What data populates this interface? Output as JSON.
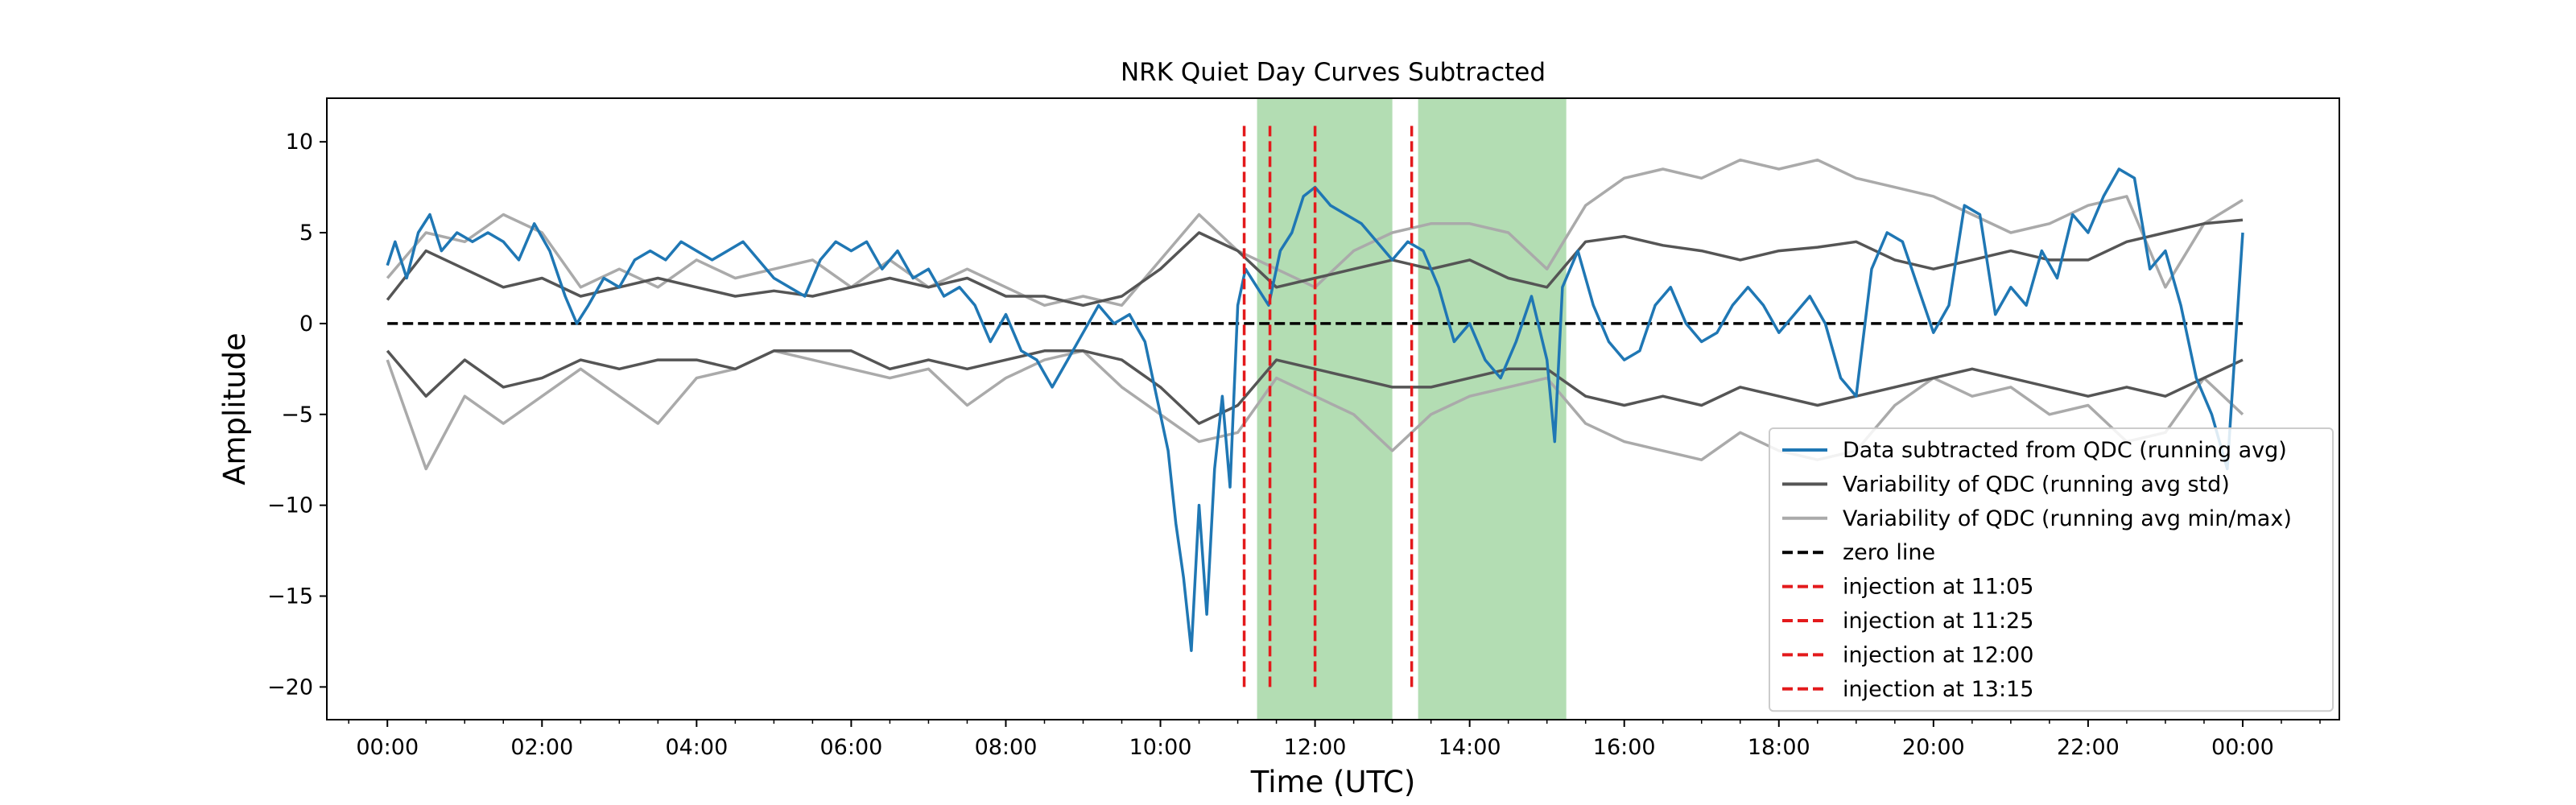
{
  "chart_data": {
    "type": "line",
    "title": "NRK Quiet Day Curves Subtracted",
    "xlabel": "Time (UTC)",
    "ylabel": "Amplitude",
    "xlim": [
      "2024-01-01T23:13",
      "2024-01-03T01:15"
    ],
    "ylim": [
      -21.8,
      12.4
    ],
    "x_ticks": [
      "00:00",
      "02:00",
      "04:00",
      "06:00",
      "08:00",
      "10:00",
      "12:00",
      "14:00",
      "16:00",
      "18:00",
      "20:00",
      "22:00",
      "00:00"
    ],
    "x_tick_hours": [
      0,
      2,
      4,
      6,
      8,
      10,
      12,
      14,
      16,
      18,
      20,
      22,
      24
    ],
    "y_ticks": [
      10,
      5,
      0,
      -5,
      -10,
      -15,
      -20
    ],
    "y_tick_labels": [
      "10",
      "5",
      "0",
      "−5",
      "−10",
      "−15",
      "−20"
    ],
    "grid": false,
    "legend_position": "lower right",
    "shaded_regions": [
      {
        "start": "11:15",
        "end": "13:00",
        "color": "#2ca02c"
      },
      {
        "start": "13:20",
        "end": "15:15",
        "color": "#2ca02c"
      }
    ],
    "legend": [
      {
        "label": "Data subtracted from QDC (running avg)",
        "color": "#1f77b4",
        "dash": "solid"
      },
      {
        "label": "Variability of QDC (running avg std)",
        "color": "#555555",
        "dash": "solid"
      },
      {
        "label": "Variability of QDC (running avg min/max)",
        "color": "#aaaaaa",
        "dash": "solid"
      },
      {
        "label": "zero line",
        "color": "#000000",
        "dash": "dashed"
      },
      {
        "label": "injection at 11:05",
        "color": "#e31a1c",
        "dash": "dashed"
      },
      {
        "label": "injection at 11:25",
        "color": "#e31a1c",
        "dash": "dashed"
      },
      {
        "label": "injection at 12:00",
        "color": "#e31a1c",
        "dash": "dashed"
      },
      {
        "label": "injection at 13:15",
        "color": "#e31a1c",
        "dash": "dashed"
      }
    ],
    "injections": [
      {
        "time": "11:05",
        "ymin": -20,
        "ymax": 11
      },
      {
        "time": "11:25",
        "ymin": -20,
        "ymax": 11
      },
      {
        "time": "12:00",
        "ymin": -20,
        "ymax": 11
      },
      {
        "time": "13:15",
        "ymin": -20,
        "ymax": 11
      }
    ],
    "series": [
      {
        "name": "Data subtracted from QDC (running avg)",
        "color": "#1f77b4",
        "x": [
          0,
          0.1,
          0.25,
          0.4,
          0.55,
          0.7,
          0.9,
          1.1,
          1.3,
          1.5,
          1.7,
          1.9,
          2.1,
          2.3,
          2.45,
          2.6,
          2.8,
          3.0,
          3.2,
          3.4,
          3.6,
          3.8,
          4.0,
          4.2,
          4.4,
          4.6,
          4.8,
          5.0,
          5.2,
          5.4,
          5.6,
          5.8,
          6.0,
          6.2,
          6.4,
          6.6,
          6.8,
          7.0,
          7.2,
          7.4,
          7.6,
          7.8,
          8.0,
          8.2,
          8.4,
          8.6,
          8.8,
          9.0,
          9.2,
          9.4,
          9.6,
          9.8,
          9.95,
          10.1,
          10.2,
          10.3,
          10.4,
          10.5,
          10.6,
          10.7,
          10.8,
          10.9,
          11.0,
          11.1,
          11.25,
          11.4,
          11.55,
          11.7,
          11.85,
          12.0,
          12.2,
          12.4,
          12.6,
          12.8,
          13.0,
          13.2,
          13.4,
          13.6,
          13.8,
          14.0,
          14.2,
          14.4,
          14.6,
          14.8,
          15.0,
          15.1,
          15.2,
          15.4,
          15.6,
          15.8,
          16.0,
          16.2,
          16.4,
          16.6,
          16.8,
          17.0,
          17.2,
          17.4,
          17.6,
          17.8,
          18.0,
          18.2,
          18.4,
          18.6,
          18.8,
          19.0,
          19.2,
          19.4,
          19.6,
          19.8,
          20.0,
          20.2,
          20.4,
          20.6,
          20.8,
          21.0,
          21.2,
          21.4,
          21.6,
          21.8,
          22.0,
          22.2,
          22.4,
          22.6,
          22.8,
          23.0,
          23.2,
          23.4,
          23.6,
          23.8,
          24.0
        ],
        "y": [
          3.2,
          4.5,
          2.5,
          5.0,
          6.0,
          4.0,
          5.0,
          4.5,
          5.0,
          4.5,
          3.5,
          5.5,
          4.0,
          1.5,
          0.0,
          1.0,
          2.5,
          2.0,
          3.5,
          4.0,
          3.5,
          4.5,
          4.0,
          3.5,
          4.0,
          4.5,
          3.5,
          2.5,
          2.0,
          1.5,
          3.5,
          4.5,
          4.0,
          4.5,
          3.0,
          4.0,
          2.5,
          3.0,
          1.5,
          2.0,
          1.0,
          -1.0,
          0.5,
          -1.5,
          -2.0,
          -3.5,
          -2.0,
          -0.5,
          1.0,
          0.0,
          0.5,
          -1.0,
          -4.0,
          -7.0,
          -11.0,
          -14.0,
          -18.0,
          -10.0,
          -16.0,
          -8.0,
          -4.0,
          -9.0,
          1.0,
          3.0,
          2.0,
          1.0,
          4.0,
          5.0,
          7.0,
          7.5,
          6.5,
          6.0,
          5.5,
          4.5,
          3.5,
          4.5,
          4.0,
          2.0,
          -1.0,
          0.0,
          -2.0,
          -3.0,
          -1.0,
          1.5,
          -2.0,
          -6.5,
          2.0,
          4.0,
          1.0,
          -1.0,
          -2.0,
          -1.5,
          1.0,
          2.0,
          0.0,
          -1.0,
          -0.5,
          1.0,
          2.0,
          1.0,
          -0.5,
          0.5,
          1.5,
          0.0,
          -3.0,
          -4.0,
          3.0,
          5.0,
          4.5,
          2.0,
          -0.5,
          1.0,
          6.5,
          6.0,
          0.5,
          2.0,
          1.0,
          4.0,
          2.5,
          6.0,
          5.0,
          7.0,
          8.5,
          8.0,
          3.0,
          4.0,
          1.0,
          -3.0,
          -5.0,
          -8.0,
          5.0
        ]
      },
      {
        "name": "Variability of QDC (running avg std)",
        "color": "#555555",
        "x": [
          0,
          0.5,
          1.0,
          1.5,
          2.0,
          2.5,
          3.0,
          3.5,
          4.0,
          4.5,
          5.0,
          5.5,
          6.0,
          6.5,
          7.0,
          7.5,
          8.0,
          8.5,
          9.0,
          9.5,
          10.0,
          10.5,
          11.0,
          11.5,
          12.0,
          12.5,
          13.0,
          13.5,
          14.0,
          14.5,
          15.0,
          15.5,
          16.0,
          16.5,
          17.0,
          17.5,
          18.0,
          18.5,
          19.0,
          19.5,
          20.0,
          20.5,
          21.0,
          21.5,
          22.0,
          22.5,
          23.0,
          23.5,
          24.0
        ],
        "y_upper": [
          1.3,
          4.0,
          3.0,
          2.0,
          2.5,
          1.5,
          2.0,
          2.5,
          2.0,
          1.5,
          1.8,
          1.5,
          2.0,
          2.5,
          2.0,
          2.5,
          1.5,
          1.5,
          1.0,
          1.5,
          3.0,
          5.0,
          4.0,
          2.0,
          2.5,
          3.0,
          3.5,
          3.0,
          3.5,
          2.5,
          2.0,
          4.5,
          4.8,
          4.3,
          4.0,
          3.5,
          4.0,
          4.2,
          4.5,
          3.5,
          3.0,
          3.5,
          4.0,
          3.5,
          3.5,
          4.5,
          5.0,
          5.5,
          5.7
        ],
        "y_lower": [
          -1.5,
          -4.0,
          -2.0,
          -3.5,
          -3.0,
          -2.0,
          -2.5,
          -2.0,
          -2.0,
          -2.5,
          -1.5,
          -1.5,
          -1.5,
          -2.5,
          -2.0,
          -2.5,
          -2.0,
          -1.5,
          -1.5,
          -2.0,
          -3.5,
          -5.5,
          -4.5,
          -2.0,
          -2.5,
          -3.0,
          -3.5,
          -3.5,
          -3.0,
          -2.5,
          -2.5,
          -4.0,
          -4.5,
          -4.0,
          -4.5,
          -3.5,
          -4.0,
          -4.5,
          -4.0,
          -3.5,
          -3.0,
          -2.5,
          -3.0,
          -3.5,
          -4.0,
          -3.5,
          -4.0,
          -3.0,
          -2.0
        ]
      },
      {
        "name": "Variability of QDC (running avg min/max)",
        "color": "#aaaaaa",
        "x": [
          0,
          0.5,
          1.0,
          1.5,
          2.0,
          2.5,
          3.0,
          3.5,
          4.0,
          4.5,
          5.0,
          5.5,
          6.0,
          6.5,
          7.0,
          7.5,
          8.0,
          8.5,
          9.0,
          9.5,
          10.0,
          10.5,
          11.0,
          11.5,
          12.0,
          12.5,
          13.0,
          13.5,
          14.0,
          14.5,
          15.0,
          15.5,
          16.0,
          16.5,
          17.0,
          17.5,
          18.0,
          18.5,
          19.0,
          19.5,
          20.0,
          20.5,
          21.0,
          21.5,
          22.0,
          22.5,
          23.0,
          23.5,
          24.0
        ],
        "y_upper": [
          2.5,
          5.0,
          4.5,
          6.0,
          5.0,
          2.0,
          3.0,
          2.0,
          3.5,
          2.5,
          3.0,
          3.5,
          2.0,
          3.5,
          2.0,
          3.0,
          2.0,
          1.0,
          1.5,
          1.0,
          3.5,
          6.0,
          4.0,
          3.0,
          2.0,
          4.0,
          5.0,
          5.5,
          5.5,
          5.0,
          3.0,
          6.5,
          8.0,
          8.5,
          8.0,
          9.0,
          8.5,
          9.0,
          8.0,
          7.5,
          7.0,
          6.0,
          5.0,
          5.5,
          6.5,
          7.0,
          2.0,
          5.5,
          6.8
        ],
        "y_lower": [
          -2.0,
          -8.0,
          -4.0,
          -5.5,
          -4.0,
          -2.5,
          -4.0,
          -5.5,
          -3.0,
          -2.5,
          -1.5,
          -2.0,
          -2.5,
          -3.0,
          -2.5,
          -4.5,
          -3.0,
          -2.0,
          -1.5,
          -3.5,
          -5.0,
          -6.5,
          -6.0,
          -3.0,
          -4.0,
          -5.0,
          -7.0,
          -5.0,
          -4.0,
          -3.5,
          -3.0,
          -5.5,
          -6.5,
          -7.0,
          -7.5,
          -6.0,
          -7.0,
          -7.5,
          -7.0,
          -4.5,
          -3.0,
          -4.0,
          -3.5,
          -5.0,
          -4.5,
          -6.5,
          -6.0,
          -3.0,
          -5.0
        ]
      }
    ]
  }
}
